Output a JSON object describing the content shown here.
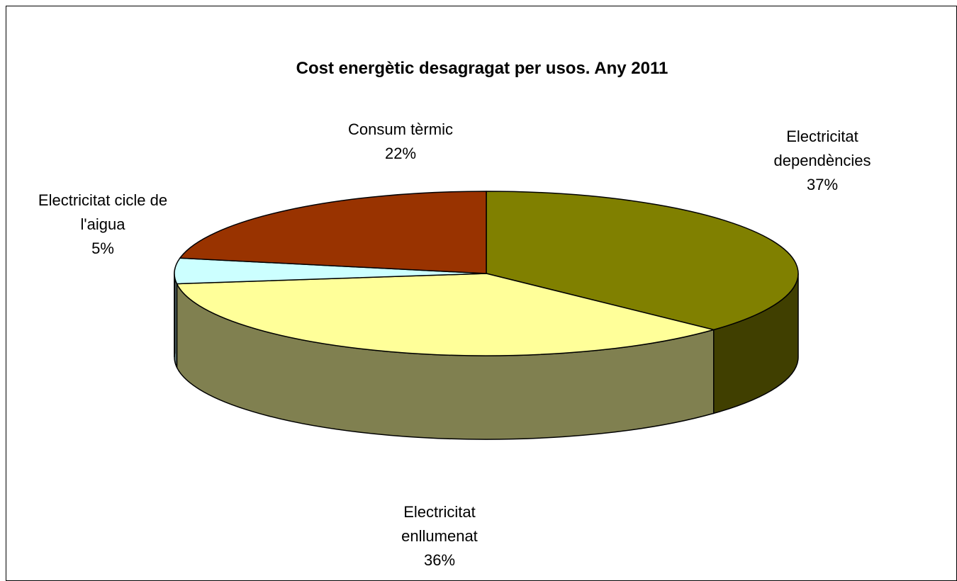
{
  "chart_data": {
    "type": "pie",
    "title": "Cost energètic desagragat per usos. Any 2011",
    "three_d": true,
    "slices": [
      {
        "label_lines": [
          "Electricitat",
          "dependències"
        ],
        "pct_label": "37%",
        "value": 37,
        "color": "#808000",
        "side_color": "#403F00"
      },
      {
        "label_lines": [
          "Electricitat",
          "enllumenat"
        ],
        "pct_label": "36%",
        "value": 36,
        "color": "#FFFF99",
        "side_color": "#808050"
      },
      {
        "label_lines": [
          "Electricitat cicle de",
          "l'aigua"
        ],
        "pct_label": "5%",
        "value": 5,
        "color": "#CCFFFF",
        "side_color": "#667F7F"
      },
      {
        "label_lines": [
          "Consum tèrmic"
        ],
        "pct_label": "22%",
        "value": 22,
        "color": "#993300",
        "side_color": "#4C1A00"
      }
    ]
  }
}
